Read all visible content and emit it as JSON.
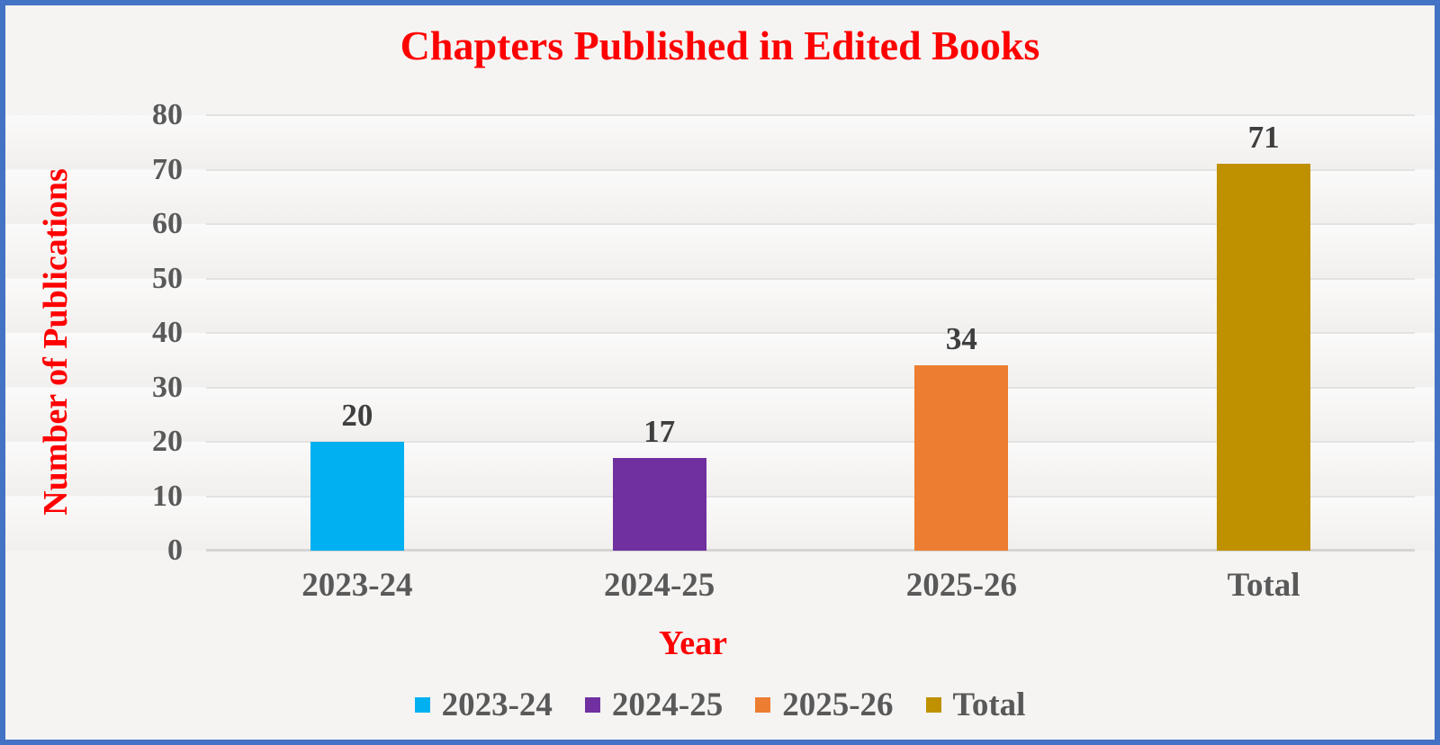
{
  "frame": {
    "border_color": "#4472C4",
    "background": "#F5F4F3"
  },
  "chart_data": {
    "type": "bar",
    "title": "Chapters Published in Edited Books",
    "xlabel": "Year",
    "ylabel": "Number of Publications",
    "categories": [
      "2023-24",
      "2024-25",
      "2025-26",
      "Total"
    ],
    "values": [
      20,
      17,
      34,
      71
    ],
    "data_labels": [
      "20",
      "17",
      "34",
      "71"
    ],
    "bar_colors": [
      "#00B0F0",
      "#7030A0",
      "#ED7D31",
      "#BF9000"
    ],
    "ylim": [
      0,
      80
    ],
    "yticks": [
      0,
      10,
      20,
      30,
      40,
      50,
      60,
      70,
      80
    ],
    "grid": "horizontal",
    "colors": {
      "title": "#FF0000",
      "axis_titles": "#FF0000",
      "tick_labels": "#595959",
      "category_labels": "#595959",
      "data_labels": "#3F3F3F",
      "legend_labels": "#595959",
      "gridline": "#E3E2E1",
      "axis_line": "#D6D5D4"
    },
    "legend": {
      "position": "bottom",
      "entries": [
        {
          "label": "2023-24",
          "color": "#00B0F0"
        },
        {
          "label": "2024-25",
          "color": "#7030A0"
        },
        {
          "label": "2025-26",
          "color": "#ED7D31"
        },
        {
          "label": "Total",
          "color": "#BF9000"
        }
      ]
    }
  }
}
